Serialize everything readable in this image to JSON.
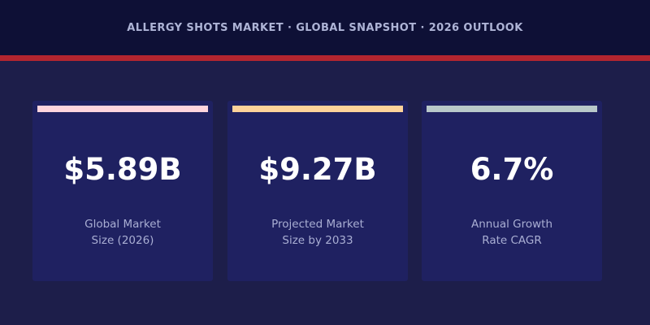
{
  "header": {
    "title": "ALLERGY SHOTS MARKET  ·  GLOBAL SNAPSHOT  ·  2026 OUTLOOK"
  },
  "colors": {
    "background": "#1d1e4a",
    "header_background": "#0e1036",
    "accent_rule": "#b3252f",
    "card_background": "#1f2161"
  },
  "cards": [
    {
      "value": "$5.89B",
      "label_line1": "Global Market",
      "label_line2": "Size (2026)",
      "strip_color": "#ffd4dd"
    },
    {
      "value": "$9.27B",
      "label_line1": "Projected Market",
      "label_line2": "Size by 2033",
      "strip_color": "#fdd29a"
    },
    {
      "value": "6.7%",
      "label_line1": "Annual Growth",
      "label_line2": "Rate CAGR",
      "strip_color": "#b8c8ca"
    }
  ]
}
